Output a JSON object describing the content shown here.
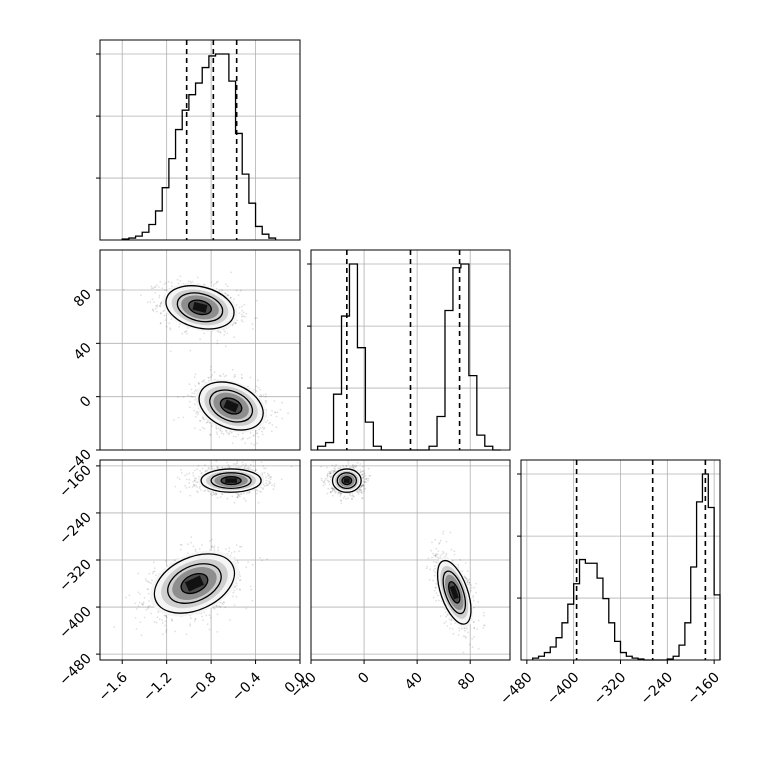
{
  "chart_data": {
    "type": "corner-plot",
    "title": "",
    "grid": true,
    "parameters": [
      {
        "index": 0,
        "label": "",
        "range": [
          -1.8,
          0.0
        ],
        "ticks": [
          -1.6,
          -1.2,
          -0.8,
          -0.4,
          0.0
        ],
        "tick_labels": [
          "−1.6",
          "−1.2",
          "−0.8",
          "−0.4",
          "0.0"
        ]
      },
      {
        "index": 1,
        "label": "",
        "range": [
          -40,
          110
        ],
        "ticks": [
          -40,
          0,
          40,
          80
        ],
        "tick_labels": [
          "−40",
          "0",
          "40",
          "80"
        ]
      },
      {
        "index": 2,
        "label": "",
        "range": [
          -490,
          -150
        ],
        "ticks": [
          -480,
          -400,
          -320,
          -240,
          -160
        ],
        "tick_labels": [
          "−480",
          "−400",
          "−320",
          "−240",
          "−160"
        ]
      }
    ],
    "histograms": [
      {
        "param": 0,
        "bin_edges": [
          -1.6,
          -1.54,
          -1.48,
          -1.42,
          -1.36,
          -1.3,
          -1.24,
          -1.18,
          -1.12,
          -1.06,
          -1.0,
          -0.94,
          -0.88,
          -0.82,
          -0.76,
          -0.7,
          -0.64,
          -0.58,
          -0.52,
          -0.46,
          -0.4,
          -0.34,
          -0.28,
          -0.22
        ],
        "counts": [
          0.005,
          0.01,
          0.02,
          0.04,
          0.08,
          0.15,
          0.27,
          0.42,
          0.57,
          0.67,
          0.75,
          0.81,
          0.89,
          0.95,
          0.96,
          0.96,
          0.82,
          0.55,
          0.34,
          0.19,
          0.07,
          0.03,
          0.01
        ],
        "quantiles": [
          -1.02,
          -0.78,
          -0.57
        ]
      },
      {
        "param": 1,
        "bin_edges": [
          -35,
          -29,
          -23,
          -17,
          -11,
          -5,
          1,
          7,
          13,
          19,
          25,
          31,
          37,
          43,
          49,
          55,
          61,
          67,
          73,
          79,
          85,
          91,
          97,
          103
        ],
        "counts": [
          0.02,
          0.04,
          0.3,
          0.72,
          1.0,
          0.55,
          0.15,
          0.02,
          0.0,
          0.0,
          0.0,
          0.0,
          0.0,
          0.0,
          0.02,
          0.18,
          0.75,
          0.98,
          1.0,
          0.4,
          0.08,
          0.02,
          0.0
        ],
        "quantiles": [
          -13,
          35,
          72
        ]
      },
      {
        "param": 2,
        "bin_edges": [
          -470,
          -460,
          -450,
          -440,
          -430,
          -420,
          -410,
          -400,
          -390,
          -380,
          -370,
          -360,
          -350,
          -340,
          -330,
          -320,
          -310,
          -300,
          -290,
          -280,
          -270,
          -260,
          -250,
          -240,
          -230,
          -220,
          -210,
          -200,
          -190,
          -180,
          -170,
          -160,
          -150
        ],
        "counts": [
          0.01,
          0.02,
          0.04,
          0.07,
          0.12,
          0.2,
          0.3,
          0.41,
          0.54,
          0.52,
          0.52,
          0.44,
          0.33,
          0.2,
          0.1,
          0.04,
          0.02,
          0.01,
          0.005,
          0.0,
          0.0,
          0.0,
          0.0,
          0.005,
          0.02,
          0.08,
          0.2,
          0.5,
          0.85,
          1.0,
          0.82,
          0.35
        ],
        "quantiles": [
          -395,
          -265,
          -175
        ]
      }
    ],
    "density_panels": [
      {
        "x_param": 0,
        "y_param": 1,
        "modes": [
          {
            "center": [
              -0.9,
              67
            ],
            "std": [
              0.17,
              9
            ],
            "rho": -0.25,
            "weight": 0.5
          },
          {
            "center": [
              -0.62,
              -7
            ],
            "std": [
              0.16,
              10
            ],
            "rho": -0.3,
            "weight": 0.5
          }
        ]
      },
      {
        "x_param": 0,
        "y_param": 2,
        "modes": [
          {
            "center": [
              -0.62,
              -185
            ],
            "std": [
              0.15,
              11
            ],
            "rho": 0.0,
            "weight": 0.5
          },
          {
            "center": [
              -0.95,
              -360
            ],
            "std": [
              0.2,
              28
            ],
            "rho": 0.35,
            "weight": 0.5
          }
        ]
      },
      {
        "x_param": 1,
        "y_param": 2,
        "modes": [
          {
            "center": [
              -13,
              -185
            ],
            "std": [
              6,
              11
            ],
            "rho": 0.0,
            "weight": 0.5
          },
          {
            "center": [
              68,
              -375
            ],
            "std": [
              7,
              30
            ],
            "rho": -0.55,
            "weight": 0.5
          }
        ]
      }
    ],
    "contour_levels": [
      0.6,
      1.2,
      1.8
    ]
  },
  "style": {
    "line_color": "#000000",
    "grid_color": "#b0b0b0",
    "scatter_color": "#000000",
    "background": "#ffffff"
  }
}
